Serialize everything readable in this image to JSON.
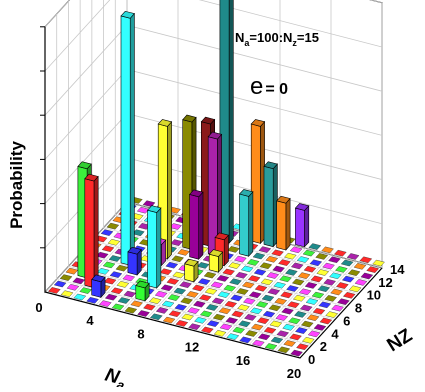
{
  "chart_data": {
    "type": "bar3d",
    "title": "",
    "zlabel": "Probability",
    "xlabel_main": "N",
    "xlabel_sub": "a",
    "ylabel": "NZ",
    "annotation": {
      "line1_parts": [
        "N",
        "a",
        "=100:N",
        "z",
        "=15"
      ],
      "line2_symbol": "e",
      "line2_text": "= 0"
    },
    "x_ticks": [
      "0",
      "4",
      "8",
      "12",
      "16",
      "20"
    ],
    "x_tick_values": [
      0,
      4,
      8,
      12,
      16,
      20
    ],
    "y_ticks": [
      "0",
      "2",
      "4",
      "6",
      "8",
      "10",
      "12",
      "14"
    ],
    "y_tick_values": [
      0,
      2,
      4,
      6,
      8,
      10,
      12,
      14
    ],
    "z_ticks_labeled": false,
    "grid": true,
    "bars": [
      {
        "na": 1,
        "nz": 3,
        "value": 0.42,
        "color": "#3cf23c"
      },
      {
        "na": 2,
        "nz": 2,
        "value": 0.41,
        "color": "#ff2a2a"
      },
      {
        "na": 3,
        "nz": 6,
        "value": 0.95,
        "color": "#33ffff"
      },
      {
        "na": 4,
        "nz": 5,
        "value": 0.08,
        "color": "#3434ff"
      },
      {
        "na": 5,
        "nz": 8,
        "value": 0.51,
        "color": "#ffff33"
      },
      {
        "na": 5,
        "nz": 7,
        "value": 0.08,
        "color": "#ff44ff"
      },
      {
        "na": 6,
        "nz": 4,
        "value": 0.29,
        "color": "#33ffff"
      },
      {
        "na": 6,
        "nz": 10,
        "value": 0.49,
        "color": "#8a8a00"
      },
      {
        "na": 7,
        "nz": 9,
        "value": 0.24,
        "color": "#990099"
      },
      {
        "na": 7,
        "nz": 11,
        "value": 0.47,
        "color": "#8b1a1a"
      },
      {
        "na": 8,
        "nz": 10,
        "value": 0.45,
        "color": "#aa22aa"
      },
      {
        "na": 8,
        "nz": 12,
        "value": 1.0,
        "color": "#1f8a8a"
      },
      {
        "na": 7,
        "nz": 12,
        "value": 0.2,
        "color": "#ffff33"
      },
      {
        "na": 10,
        "nz": 13,
        "value": 0.45,
        "color": "#ff8c1a"
      },
      {
        "na": 10,
        "nz": 11,
        "value": 0.23,
        "color": "#33cccc"
      },
      {
        "na": 11,
        "nz": 13,
        "value": 0.3,
        "color": "#2a9c9c"
      },
      {
        "na": 12,
        "nz": 13,
        "value": 0.18,
        "color": "#ff8c1a"
      },
      {
        "na": 13,
        "nz": 14,
        "value": 0.14,
        "color": "#9933ff"
      },
      {
        "na": 3,
        "nz": 1,
        "value": 0.06,
        "color": "#3434ff"
      },
      {
        "na": 6,
        "nz": 2,
        "value": 0.05,
        "color": "#33ff33"
      },
      {
        "na": 8,
        "nz": 6,
        "value": 0.06,
        "color": "#ffff33"
      },
      {
        "na": 9,
        "nz": 9,
        "value": 0.1,
        "color": "#ff2a2a"
      },
      {
        "na": 9,
        "nz": 8,
        "value": 0.06,
        "color": "#ffff33"
      }
    ],
    "floor_palette": [
      "#ff2a2a",
      "#ffff33",
      "#33ffff",
      "#3434ff",
      "#ff44ff",
      "#3cf23c",
      "#8a8a00",
      "#990099",
      "#1f8a8a",
      "#ff8c1a",
      "#ff2a2a",
      "#aa22aa"
    ]
  }
}
